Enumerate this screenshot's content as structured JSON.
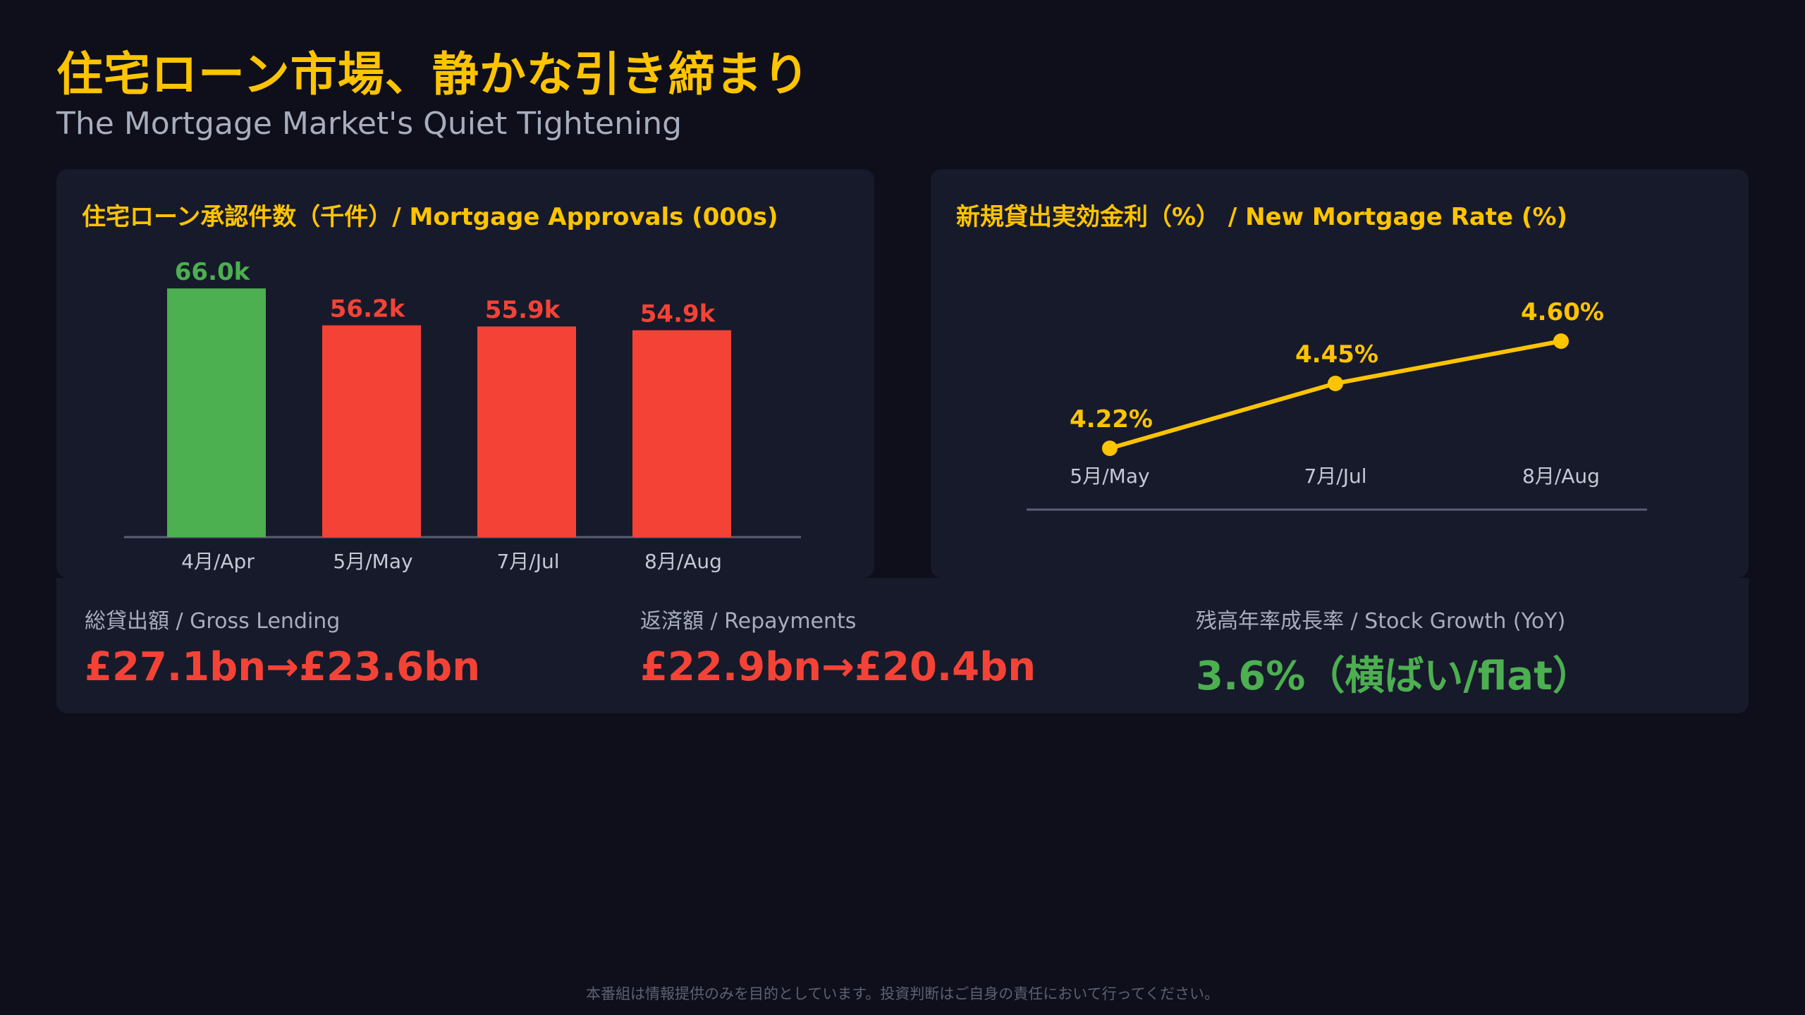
{
  "header": {
    "title": "住宅ローン市場、静かな引き締まり",
    "subtitle": "The Mortgage Market's Quiet Tightening"
  },
  "colors": {
    "accent": "#ffc400",
    "up": "#4caf50",
    "down": "#f44336",
    "line": "#ffc400"
  },
  "chart_data": [
    {
      "type": "bar",
      "title": "住宅ローン承認件数（千件）/ Mortgage Approvals (000s)",
      "categories": [
        "4月/Apr",
        "5月/May",
        "7月/Jul",
        "8月/Aug"
      ],
      "values": [
        66.0,
        56.2,
        55.9,
        54.9
      ],
      "data_labels": [
        "66.0k",
        "56.2k",
        "55.9k",
        "54.9k"
      ],
      "bar_colors": [
        "#4caf50",
        "#f44336",
        "#f44336",
        "#f44336"
      ],
      "ylim": [
        0,
        70
      ],
      "grid": false
    },
    {
      "type": "line",
      "title": "新規貸出実効金利（%） / New Mortgage Rate (%)",
      "categories": [
        "5月/May",
        "7月/Jul",
        "8月/Aug"
      ],
      "values": [
        4.22,
        4.45,
        4.6
      ],
      "data_labels": [
        "4.22%",
        "4.45%",
        "4.60%"
      ],
      "ylim": [
        4.0,
        4.8
      ],
      "grid": false
    }
  ],
  "stats": [
    {
      "label": "総貸出額 / Gross Lending",
      "value": "£27.1bn→£23.6bn",
      "color": "#f44336"
    },
    {
      "label": "返済額 / Repayments",
      "value": "£22.9bn→£20.4bn",
      "color": "#f44336"
    },
    {
      "label": "残高年率成長率 / Stock Growth (YoY)",
      "value": "3.6%（横ばい/flat）",
      "color": "#4caf50"
    }
  ],
  "footer": {
    "disclaimer": "本番組は情報提供のみを目的としています。投資判断はご自身の責任において行ってください。"
  }
}
